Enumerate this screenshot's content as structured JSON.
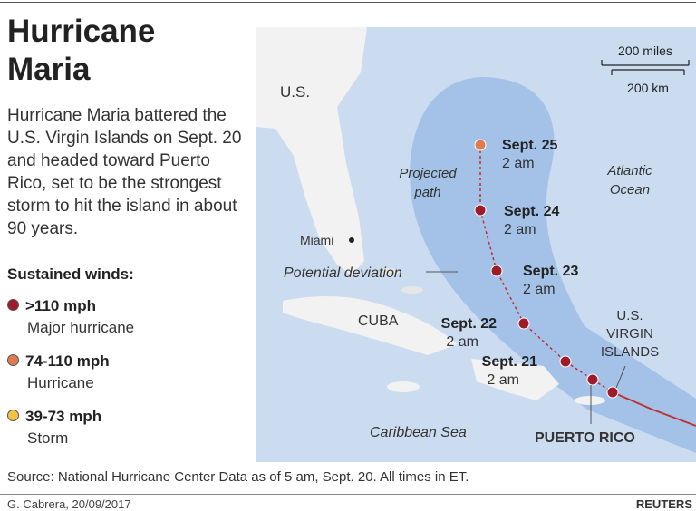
{
  "title": "Hurricane Maria",
  "description": "Hurricane Maria battered the U.S. Virgin Islands on Sept. 20 and headed toward Puerto Rico, set to be the strongest storm to hit the island in about 90 years.",
  "legend": {
    "title": "Sustained winds:",
    "items": [
      {
        "label": ">110 mph",
        "sublabel": "Major hurricane",
        "color": "#9e1b2a"
      },
      {
        "label": "74-110 mph",
        "sublabel": "Hurricane",
        "color": "#e07b4f"
      },
      {
        "label": "39-73 mph",
        "sublabel": "Storm",
        "color": "#f3c242"
      }
    ]
  },
  "map": {
    "scale": {
      "miles": "200 miles",
      "km": "200 km"
    },
    "labels": [
      {
        "lines": [
          "U.S."
        ]
      },
      {
        "lines": [
          "Miami"
        ]
      },
      {
        "lines": [
          "Projected",
          "path"
        ]
      },
      {
        "lines": [
          "Atlantic",
          "Ocean"
        ]
      },
      {
        "lines": [
          "Potential deviation"
        ]
      },
      {
        "lines": [
          "CUBA"
        ]
      },
      {
        "lines": [
          "U.S.",
          "VIRGIN",
          "ISLANDS"
        ]
      },
      {
        "lines": [
          "Caribbean Sea"
        ]
      },
      {
        "lines": [
          "PUERTO RICO"
        ]
      }
    ],
    "track": [
      {
        "date": "Sept. 25",
        "time": "2 am",
        "color": "#e07b4f"
      },
      {
        "date": "Sept. 24",
        "time": "2 am",
        "color": "#9e1b2a"
      },
      {
        "date": "Sept. 23",
        "time": "2 am",
        "color": "#9e1b2a"
      },
      {
        "date": "Sept. 22",
        "time": "2 am",
        "color": "#9e1b2a"
      },
      {
        "date": "Sept. 21",
        "time": "2 am",
        "color": "#9e1b2a"
      }
    ]
  },
  "source": "Source: National Hurricane Center Data as of 5 am, Sept. 20. All times in ET.",
  "credit": "G. Cabrera, 20/09/2017",
  "brand": "REUTERS"
}
